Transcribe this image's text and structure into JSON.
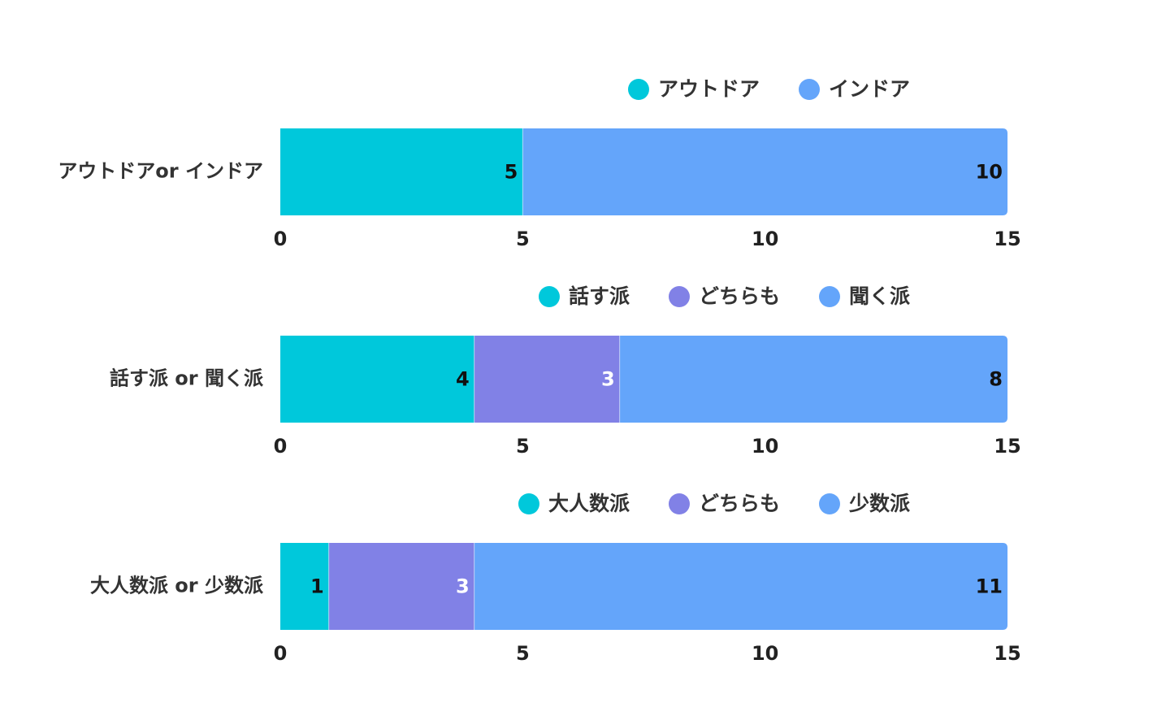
{
  "colors": {
    "teal": "#00c8db",
    "purple": "#8181e6",
    "blue": "#64a5fa"
  },
  "chart_data": [
    {
      "type": "bar",
      "orientation": "horizontal",
      "stacked": true,
      "categories": [
        "アウトドアor インドア"
      ],
      "series": [
        {
          "name": "アウトドア",
          "values": [
            5
          ],
          "color": "#00c8db",
          "label_color": "#111111"
        },
        {
          "name": "インドア",
          "values": [
            10
          ],
          "color": "#64a5fa",
          "label_color": "#111111"
        }
      ],
      "xlim": [
        0,
        15
      ],
      "xticks": [
        "0",
        "5",
        "10",
        "15"
      ],
      "legend_position": "top-right",
      "grid": false
    },
    {
      "type": "bar",
      "orientation": "horizontal",
      "stacked": true,
      "categories": [
        "話す派 or 聞く派"
      ],
      "series": [
        {
          "name": "話す派",
          "values": [
            4
          ],
          "color": "#00c8db",
          "label_color": "#111111"
        },
        {
          "name": "どちらも",
          "values": [
            3
          ],
          "color": "#8181e6",
          "label_color": "#ffffff"
        },
        {
          "name": "聞く派",
          "values": [
            8
          ],
          "color": "#64a5fa",
          "label_color": "#111111"
        }
      ],
      "xlim": [
        0,
        15
      ],
      "xticks": [
        "0",
        "5",
        "10",
        "15"
      ],
      "legend_position": "top-right",
      "grid": false
    },
    {
      "type": "bar",
      "orientation": "horizontal",
      "stacked": true,
      "categories": [
        "大人数派 or 少数派"
      ],
      "series": [
        {
          "name": "大人数派",
          "values": [
            1
          ],
          "color": "#00c8db",
          "label_color": "#111111"
        },
        {
          "name": "どちらも",
          "values": [
            3
          ],
          "color": "#8181e6",
          "label_color": "#ffffff"
        },
        {
          "name": "少数派",
          "values": [
            11
          ],
          "color": "#64a5fa",
          "label_color": "#111111"
        }
      ],
      "xlim": [
        0,
        15
      ],
      "xticks": [
        "0",
        "5",
        "10",
        "15"
      ],
      "legend_position": "top-right",
      "grid": false
    }
  ]
}
